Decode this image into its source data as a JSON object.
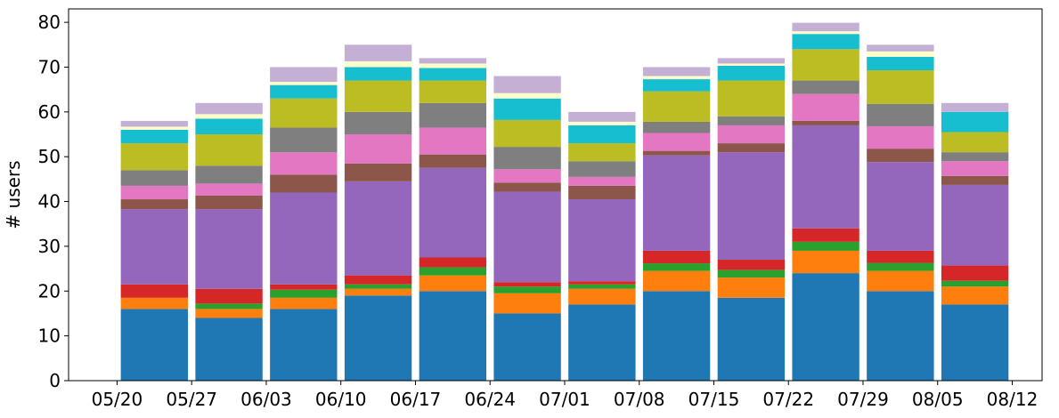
{
  "chart_data": {
    "type": "bar",
    "stacked": true,
    "xlabel": "",
    "ylabel": "# users",
    "ylim": [
      0,
      83
    ],
    "yticks": [
      0,
      10,
      20,
      30,
      40,
      50,
      60,
      70,
      80
    ],
    "xticks": [
      "05/20",
      "05/27",
      "06/03",
      "06/10",
      "06/17",
      "06/24",
      "07/01",
      "07/08",
      "07/15",
      "07/22",
      "07/29",
      "08/05",
      "08/12"
    ],
    "categories": [
      "05/23",
      "05/30",
      "06/06",
      "06/13",
      "06/20",
      "06/27",
      "07/04",
      "07/11",
      "07/18",
      "07/25",
      "08/01",
      "08/08"
    ],
    "grid": false,
    "legend": "none",
    "series": [
      {
        "color": "#1f77b4",
        "values": [
          16,
          14,
          16,
          19,
          20,
          15,
          17,
          20,
          18.5,
          24,
          20,
          17
        ]
      },
      {
        "color": "#ff7f0e",
        "values": [
          2.5,
          2,
          2.5,
          1.5,
          3.5,
          4.5,
          3.5,
          4.5,
          4.5,
          5,
          4.5,
          4
        ]
      },
      {
        "color": "#2ca02c",
        "values": [
          0,
          1.2,
          1.8,
          1,
          1.8,
          1.5,
          1,
          1.7,
          1.7,
          2,
          1.8,
          1.3
        ]
      },
      {
        "color": "#d62728",
        "values": [
          3,
          3.3,
          1.2,
          2,
          2.2,
          1,
          0.7,
          2.8,
          2.3,
          3,
          2.7,
          3.4
        ]
      },
      {
        "color": "#9467bd",
        "values": [
          16.8,
          17.8,
          20.5,
          21,
          20,
          20.2,
          18.3,
          21.3,
          24,
          23,
          19.8,
          18
        ]
      },
      {
        "color": "#8c564b",
        "values": [
          2.2,
          3,
          4,
          4,
          3,
          2,
          3,
          1,
          2,
          1,
          3,
          2
        ]
      },
      {
        "color": "#e377c2",
        "values": [
          3,
          2.7,
          5,
          6.5,
          6,
          3,
          2,
          4,
          4,
          6,
          5,
          3.3
        ]
      },
      {
        "color": "#7f7f7f",
        "values": [
          3.5,
          4,
          5.5,
          5,
          5.5,
          5,
          3.5,
          2.5,
          2,
          3,
          5,
          2
        ]
      },
      {
        "color": "#bcbd22",
        "values": [
          6,
          7,
          6.5,
          7,
          5,
          6,
          4,
          6.8,
          8,
          7,
          7.5,
          4.5
        ]
      },
      {
        "color": "#17becf",
        "values": [
          3,
          3.5,
          3,
          3,
          2.8,
          4.8,
          4,
          2.7,
          3.3,
          3.4,
          3,
          4.5
        ]
      },
      {
        "color": "#ffffcc",
        "values": [
          0.7,
          1,
          0.7,
          1.3,
          1,
          1.2,
          0.8,
          0.7,
          0.5,
          0.6,
          1.2,
          0
        ]
      },
      {
        "color": "#c5b0d5",
        "values": [
          1.3,
          2.5,
          3.3,
          3.7,
          1.2,
          3.8,
          2.2,
          2,
          1.2,
          1.9,
          1.5,
          2
        ]
      }
    ]
  }
}
